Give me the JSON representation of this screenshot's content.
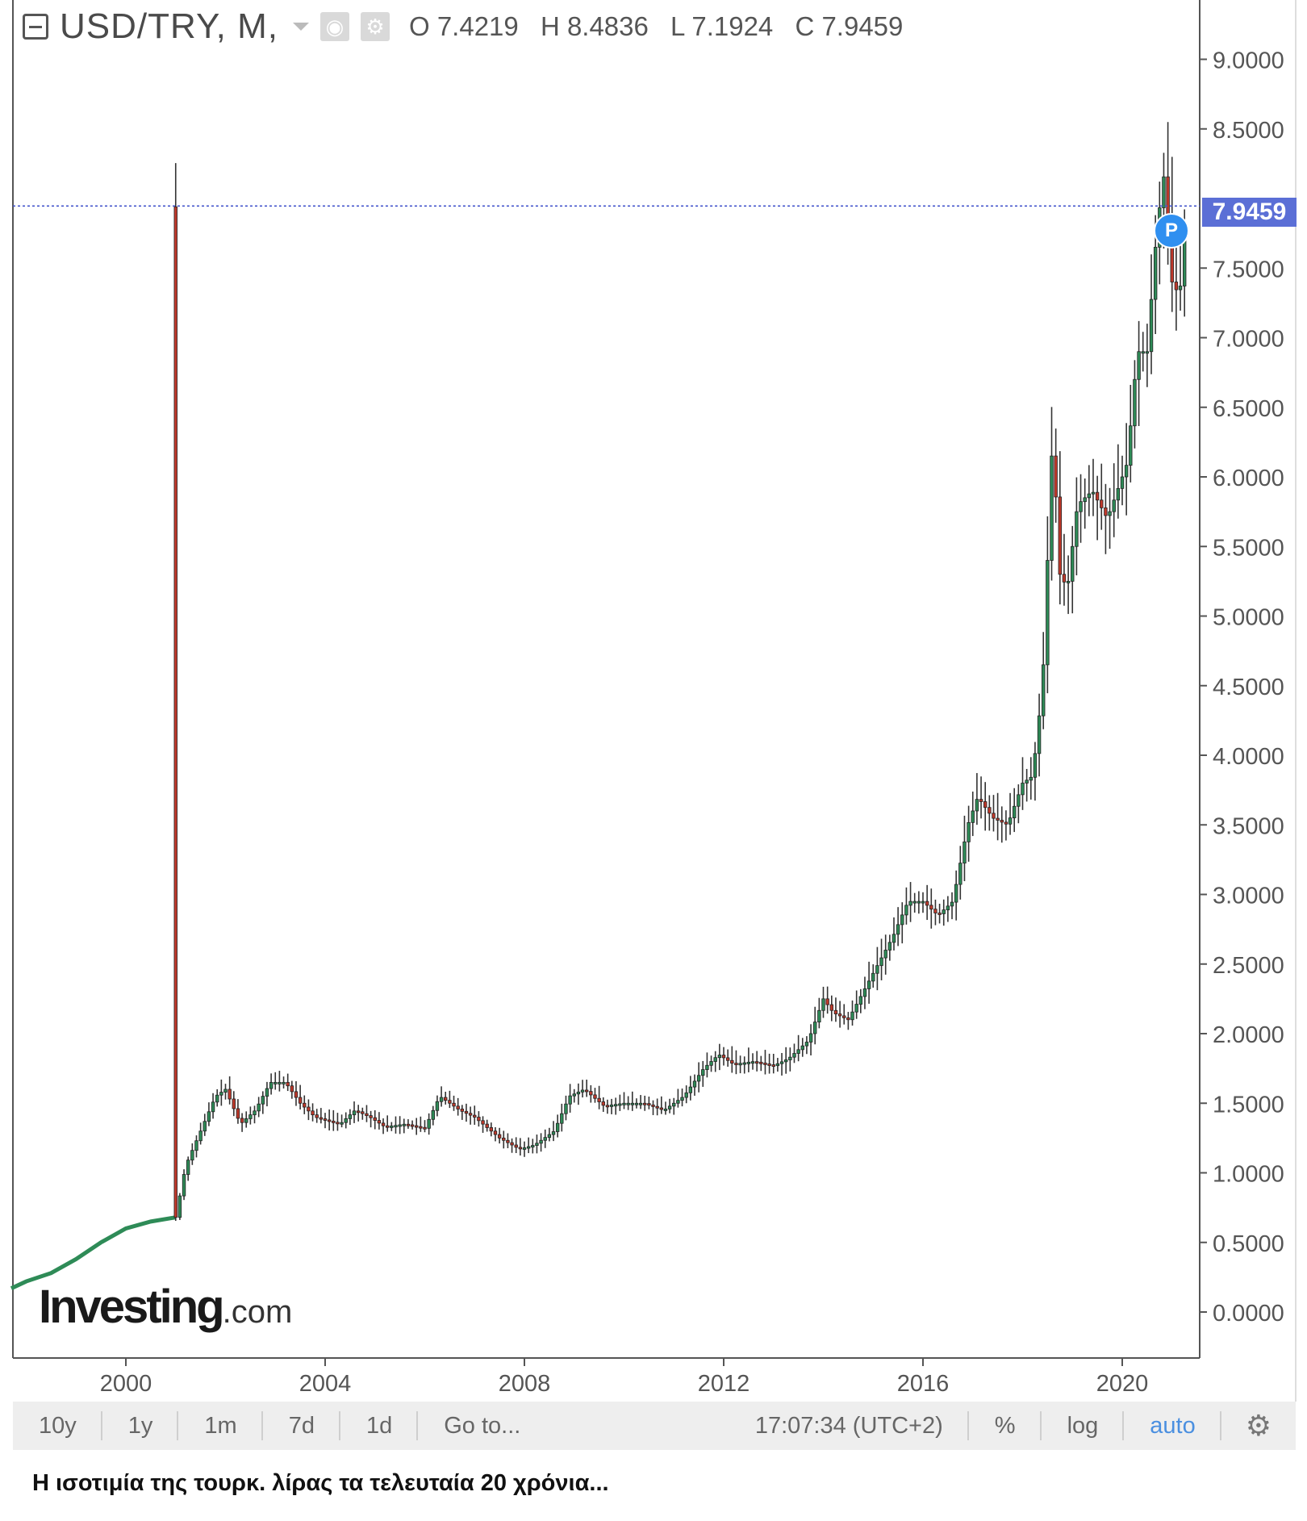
{
  "legend": {
    "symbol": "USD/TRY, M,",
    "ohlc": {
      "open": "O 7.4219",
      "high": "H 8.4836",
      "low": "L 7.1924",
      "close": "C 7.9459"
    },
    "icons": [
      "collapse-icon",
      "chevron-down-icon",
      "eye-icon",
      "gear-icon"
    ]
  },
  "chart_data": {
    "type": "candlestick",
    "title": "",
    "xlabel": "",
    "ylabel": "",
    "x_ticks": [
      "2000",
      "2004",
      "2008",
      "2012",
      "2016",
      "2020"
    ],
    "y_ticks": [
      "0.0000",
      "0.5000",
      "1.0000",
      "1.5000",
      "2.0000",
      "2.5000",
      "3.0000",
      "3.5000",
      "4.0000",
      "4.5000",
      "5.0000",
      "5.5000",
      "6.0000",
      "6.5000",
      "7.0000",
      "7.5000",
      "8.5000",
      "9.0000"
    ],
    "ylim": [
      0,
      9.5
    ],
    "xlim": [
      1997.7,
      2021.6
    ],
    "last_price": "7.9459",
    "last_price_value": 7.9459,
    "grid": false,
    "colors": {
      "up": "#2e8b57",
      "down": "#c0392b",
      "wick": "#333333",
      "price_line": "#4455cc"
    },
    "series": [
      {
        "x": [
          1997.7,
          1998.0,
          1998.5,
          1999.0,
          1999.5,
          2000.0,
          2000.5,
          2001.0
        ],
        "close": [
          0.17,
          0.22,
          0.28,
          0.38,
          0.5,
          0.6,
          0.65,
          0.68
        ]
      }
    ],
    "keypoints": [
      [
        2001.0,
        0.68
      ],
      [
        2001.2,
        1.05
      ],
      [
        2001.5,
        1.3
      ],
      [
        2001.8,
        1.55
      ],
      [
        2002.0,
        1.6
      ],
      [
        2002.3,
        1.35
      ],
      [
        2002.6,
        1.45
      ],
      [
        2002.9,
        1.65
      ],
      [
        2003.2,
        1.65
      ],
      [
        2003.5,
        1.5
      ],
      [
        2003.8,
        1.4
      ],
      [
        2004.0,
        1.38
      ],
      [
        2004.3,
        1.35
      ],
      [
        2004.6,
        1.45
      ],
      [
        2004.9,
        1.4
      ],
      [
        2005.2,
        1.33
      ],
      [
        2005.6,
        1.35
      ],
      [
        2006.0,
        1.32
      ],
      [
        2006.3,
        1.55
      ],
      [
        2006.7,
        1.45
      ],
      [
        2007.0,
        1.4
      ],
      [
        2007.5,
        1.25
      ],
      [
        2007.9,
        1.17
      ],
      [
        2008.2,
        1.2
      ],
      [
        2008.6,
        1.3
      ],
      [
        2008.9,
        1.55
      ],
      [
        2009.2,
        1.6
      ],
      [
        2009.6,
        1.48
      ],
      [
        2010.0,
        1.5
      ],
      [
        2010.4,
        1.5
      ],
      [
        2010.8,
        1.45
      ],
      [
        2011.2,
        1.55
      ],
      [
        2011.6,
        1.75
      ],
      [
        2011.9,
        1.85
      ],
      [
        2012.2,
        1.78
      ],
      [
        2012.6,
        1.8
      ],
      [
        2013.0,
        1.77
      ],
      [
        2013.3,
        1.82
      ],
      [
        2013.7,
        1.95
      ],
      [
        2014.0,
        2.25
      ],
      [
        2014.2,
        2.15
      ],
      [
        2014.5,
        2.1
      ],
      [
        2014.8,
        2.3
      ],
      [
        2015.1,
        2.5
      ],
      [
        2015.4,
        2.7
      ],
      [
        2015.7,
        2.95
      ],
      [
        2016.0,
        2.95
      ],
      [
        2016.3,
        2.85
      ],
      [
        2016.6,
        2.95
      ],
      [
        2016.9,
        3.5
      ],
      [
        2017.1,
        3.7
      ],
      [
        2017.4,
        3.55
      ],
      [
        2017.7,
        3.5
      ],
      [
        2018.0,
        3.8
      ],
      [
        2018.2,
        3.85
      ],
      [
        2018.4,
        4.5
      ],
      [
        2018.6,
        6.3
      ],
      [
        2018.75,
        5.3
      ],
      [
        2018.9,
        5.2
      ],
      [
        2019.1,
        5.8
      ],
      [
        2019.4,
        5.9
      ],
      [
        2019.7,
        5.7
      ],
      [
        2019.9,
        5.9
      ],
      [
        2020.1,
        6.1
      ],
      [
        2020.3,
        6.9
      ],
      [
        2020.5,
        6.9
      ],
      [
        2020.7,
        7.8
      ],
      [
        2020.85,
        8.2
      ],
      [
        2021.0,
        7.4
      ],
      [
        2021.15,
        7.3
      ],
      [
        2021.3,
        7.94
      ]
    ]
  },
  "logo": {
    "big": "Investing",
    "small": ".com"
  },
  "toolbar": {
    "items": [
      "10y",
      "1y",
      "1m",
      "7d",
      "1d",
      "Go to..."
    ],
    "time": "17:07:34 (UTC+2)",
    "percent": "%",
    "log": "log",
    "auto": "auto"
  },
  "caption": "Η ισοτιμία της τουρκ. λίρας τα τελευταία 20 χρόνια..."
}
